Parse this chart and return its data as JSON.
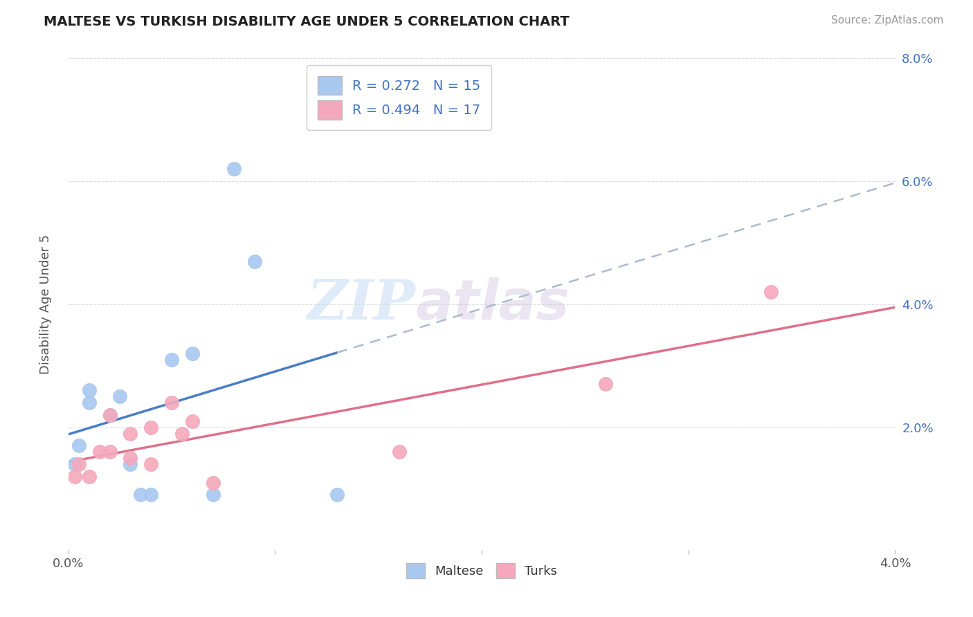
{
  "title": "MALTESE VS TURKISH DISABILITY AGE UNDER 5 CORRELATION CHART",
  "source": "Source: ZipAtlas.com",
  "ylabel": "Disability Age Under 5",
  "xlim": [
    0.0,
    0.04
  ],
  "ylim": [
    0.0,
    0.08
  ],
  "xticks": [
    0.0,
    0.01,
    0.02,
    0.03,
    0.04
  ],
  "xtick_labels": [
    "0.0%",
    "",
    "",
    "",
    "4.0%"
  ],
  "yticks": [
    0.0,
    0.02,
    0.04,
    0.06,
    0.08
  ],
  "ytick_labels": [
    "",
    "2.0%",
    "4.0%",
    "6.0%",
    "8.0%"
  ],
  "maltese_color": "#A8C8F0",
  "turks_color": "#F4A8BC",
  "maltese_line_color": "#4A7CC7",
  "turks_line_color": "#E0708A",
  "maltese_R": 0.272,
  "maltese_N": 15,
  "turks_R": 0.494,
  "turks_N": 17,
  "legend_label_maltese": "Maltese",
  "legend_label_turks": "Turks",
  "watermark_left": "ZIP",
  "watermark_right": "atlas",
  "maltese_x": [
    0.0003,
    0.0005,
    0.001,
    0.001,
    0.002,
    0.0025,
    0.003,
    0.0035,
    0.004,
    0.005,
    0.006,
    0.007,
    0.008,
    0.009,
    0.013
  ],
  "maltese_y": [
    0.014,
    0.017,
    0.024,
    0.026,
    0.022,
    0.025,
    0.014,
    0.009,
    0.009,
    0.031,
    0.032,
    0.009,
    0.062,
    0.047,
    0.009
  ],
  "turks_x": [
    0.0003,
    0.0005,
    0.001,
    0.0015,
    0.002,
    0.002,
    0.003,
    0.003,
    0.004,
    0.004,
    0.005,
    0.0055,
    0.006,
    0.007,
    0.016,
    0.026,
    0.034
  ],
  "turks_y": [
    0.012,
    0.014,
    0.012,
    0.016,
    0.016,
    0.022,
    0.015,
    0.019,
    0.014,
    0.02,
    0.024,
    0.019,
    0.021,
    0.011,
    0.016,
    0.027,
    0.042
  ],
  "background_color": "#FFFFFF",
  "grid_color": "#DDDDDD",
  "grid_style": "--"
}
